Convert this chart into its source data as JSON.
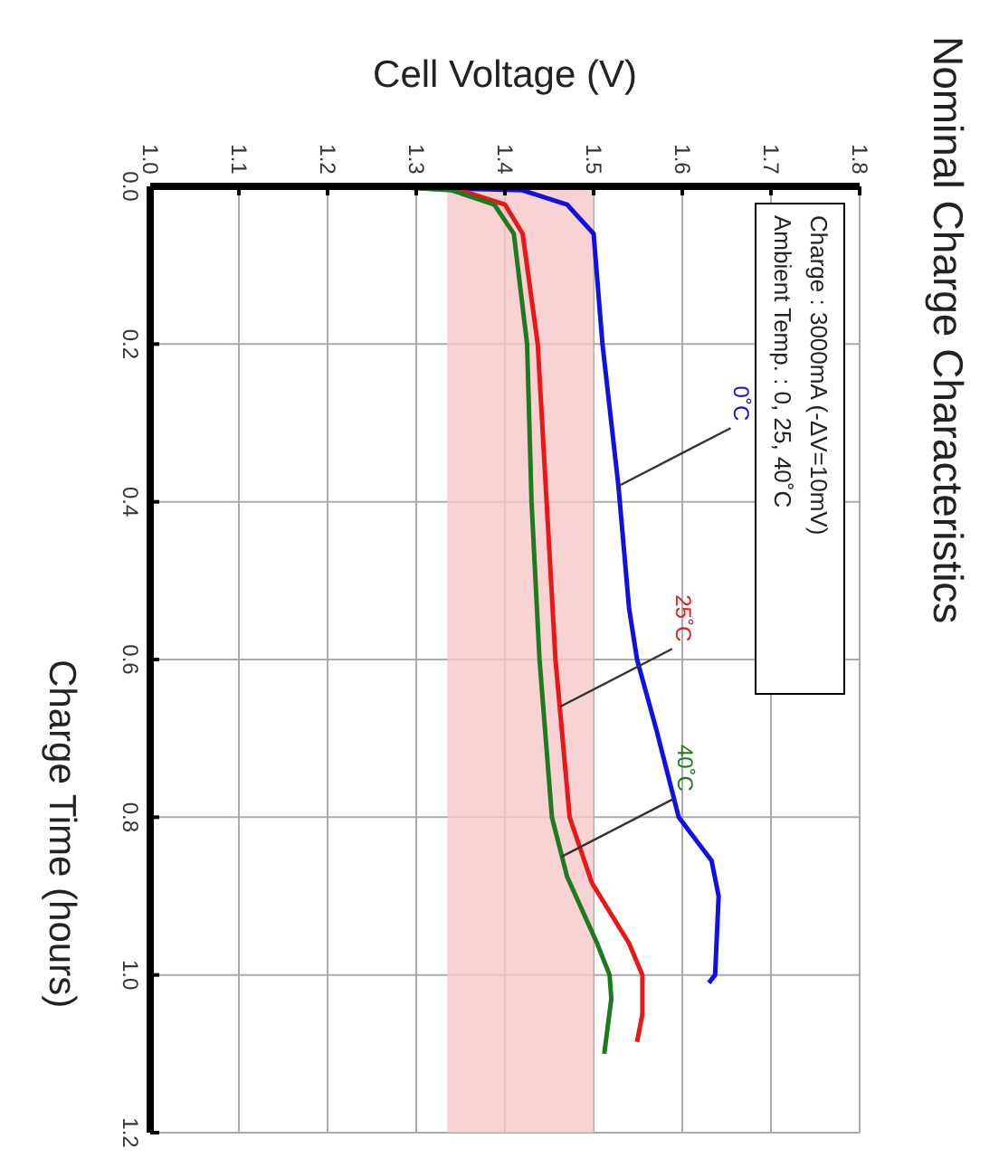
{
  "chart_data": {
    "type": "line",
    "title": "Nominal Charge Characteristics",
    "xlabel": "Cell Voltage (V)",
    "ylabel": "Charge Time (hours)",
    "xlim": [
      1.0,
      1.8
    ],
    "xticks": [
      {
        "value": 1,
        "label": "1.0"
      },
      1.1,
      1.2,
      1.3,
      1.4,
      1.5,
      1.6,
      1.7,
      1.8
    ],
    "ylim": [
      1.2,
      0
    ],
    "yticks": [
      {
        "value": 0,
        "label": "0.0"
      },
      0.2,
      0.4,
      0.6,
      0.8,
      {
        "value": 1,
        "label": "1.0"
      },
      1.2
    ],
    "grid": true,
    "marker": "none",
    "line_style": "solid",
    "bands": [
      {
        "axis": "x",
        "from": 1.335,
        "to": 1.5,
        "color": "#f8c8c8"
      }
    ],
    "annotations": [
      {
        "text": "0˚C",
        "x": 1.528,
        "y": 0.38
      },
      {
        "text": "25˚C",
        "x": 1.462,
        "y": 0.66
      },
      {
        "text": "40˚C",
        "x": 1.464,
        "y": 0.85
      },
      "Charge : 3000mA (-ΔV=10mV)",
      "Ambient Temp. : 0, 25, 40˚C"
    ],
    "series": [
      {
        "color": "#1010e0",
        "x": [
          1.25,
          1.42,
          1.47,
          1.5,
          1.51,
          1.528,
          1.54,
          1.549,
          1.571,
          1.596,
          1.633,
          1.641,
          1.637,
          1.63
        ],
        "values": [
          0,
          0.005,
          0.023,
          0.06,
          0.2,
          0.38,
          0.535,
          0.6,
          0.69,
          0.8,
          0.855,
          0.9,
          1.0,
          1.01
        ]
      },
      {
        "color": "#e81818",
        "x": [
          1.26,
          1.35,
          1.4,
          1.42,
          1.437,
          1.447,
          1.457,
          1.473,
          1.498,
          1.54,
          1.555,
          1.555,
          1.549
        ],
        "values": [
          0,
          0.005,
          0.023,
          0.06,
          0.2,
          0.4,
          0.6,
          0.8,
          0.883,
          0.96,
          1.0,
          1.05,
          1.085
        ]
      },
      {
        "color": "#1e7a1e",
        "x": [
          1.27,
          1.34,
          1.388,
          1.41,
          1.425,
          1.43,
          1.439,
          1.453,
          1.47,
          1.504,
          1.518,
          1.52,
          1.512
        ],
        "values": [
          0,
          0.005,
          0.023,
          0.06,
          0.2,
          0.4,
          0.6,
          0.8,
          0.875,
          0.96,
          1.0,
          1.03,
          1.1
        ]
      }
    ]
  }
}
